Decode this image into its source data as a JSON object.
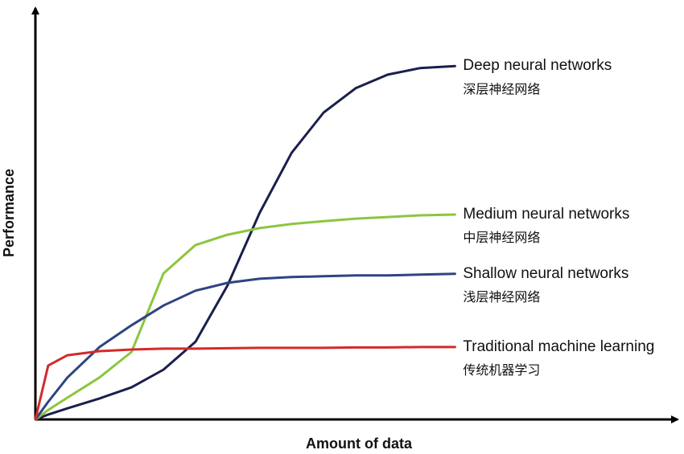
{
  "chart_data": {
    "type": "line",
    "x_label": "Amount of data",
    "y_label": "Performance",
    "xlim": [
      0,
      100
    ],
    "ylim": [
      0,
      100
    ],
    "x": [
      0,
      2,
      5,
      10,
      15,
      20,
      25,
      30,
      35,
      40,
      45,
      50,
      55,
      60,
      65.5
    ],
    "series": [
      {
        "name": "Deep neural networks",
        "name_zh": "深层神经网络",
        "color": "#1a1f4d",
        "values": [
          0,
          1.2,
          2.7,
          5.1,
          7.8,
          12.1,
          18.9,
          32.6,
          50.2,
          64.8,
          74.6,
          80.5,
          83.8,
          85.4,
          85.9
        ]
      },
      {
        "name": "Medium neural networks",
        "name_zh": "中层神经网络",
        "color": "#8cc63f",
        "values": [
          0,
          2.3,
          5.3,
          10.2,
          16.4,
          35.5,
          42.4,
          44.9,
          46.5,
          47.5,
          48.2,
          48.8,
          49.2,
          49.6,
          49.8
        ]
      },
      {
        "name": "Shallow neural networks",
        "name_zh": "浅层神经网络",
        "color": "#2e4482",
        "values": [
          0,
          4.3,
          10.2,
          17.6,
          22.9,
          27.7,
          31.3,
          33.2,
          34.2,
          34.6,
          34.8,
          35.0,
          35.0,
          35.2,
          35.4
        ]
      },
      {
        "name": "Traditional machine learning",
        "name_zh": "传统机器学习",
        "color": "#d42a2a",
        "values": [
          0,
          13.1,
          15.6,
          16.6,
          17.0,
          17.2,
          17.2,
          17.3,
          17.4,
          17.4,
          17.4,
          17.5,
          17.5,
          17.6,
          17.6
        ]
      }
    ]
  }
}
